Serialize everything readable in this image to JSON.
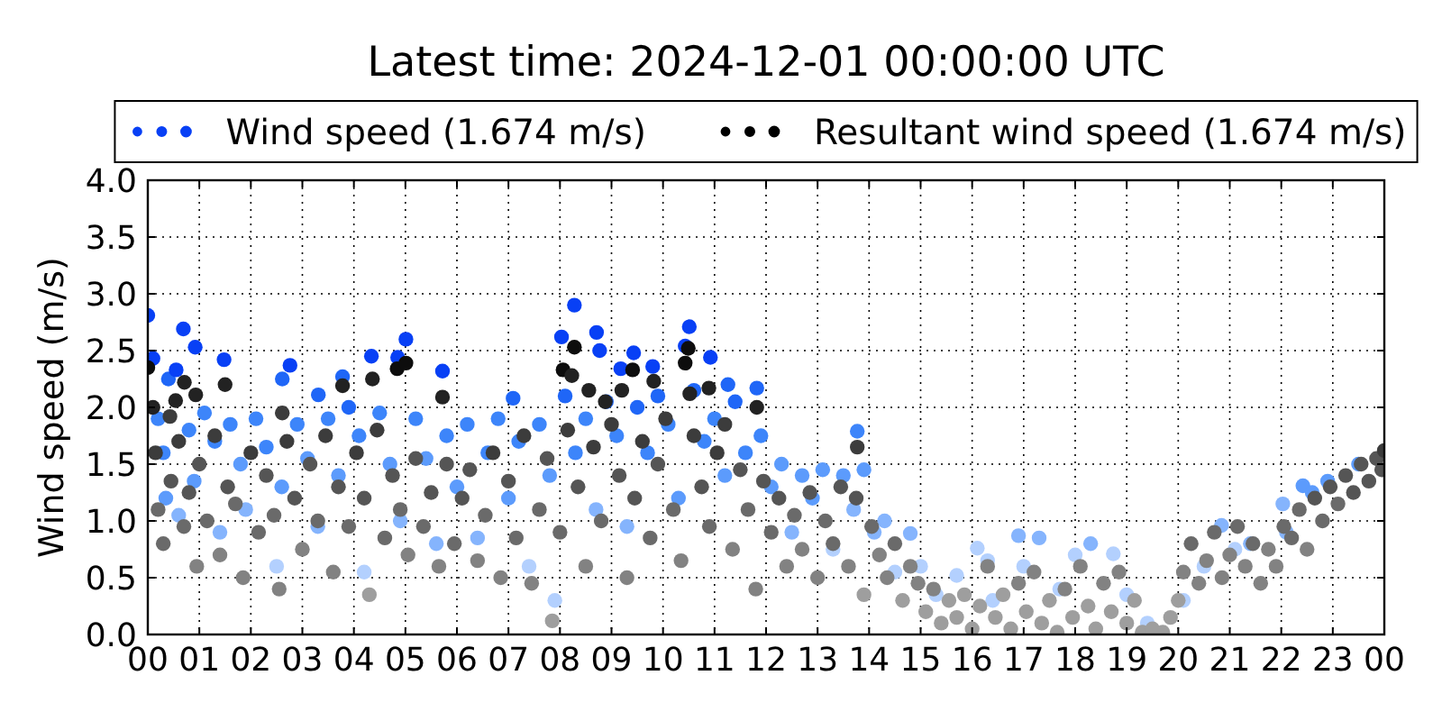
{
  "chart_data": {
    "type": "scatter",
    "title": "Latest time: 2024-12-01 00:00:00 UTC",
    "ylabel": "Wind speed (m/s)",
    "xlim": [
      0,
      24
    ],
    "xticks": [
      {
        "value": 0,
        "label": "00"
      },
      {
        "value": 1,
        "label": "01"
      },
      {
        "value": 2,
        "label": "02"
      },
      {
        "value": 3,
        "label": "03"
      },
      {
        "value": 4,
        "label": "04"
      },
      {
        "value": 5,
        "label": "05"
      },
      {
        "value": 6,
        "label": "06"
      },
      {
        "value": 7,
        "label": "07"
      },
      {
        "value": 8,
        "label": "08"
      },
      {
        "value": 9,
        "label": "09"
      },
      {
        "value": 10,
        "label": "10"
      },
      {
        "value": 11,
        "label": "11"
      },
      {
        "value": 12,
        "label": "12"
      },
      {
        "value": 13,
        "label": "13"
      },
      {
        "value": 14,
        "label": "14"
      },
      {
        "value": 15,
        "label": "15"
      },
      {
        "value": 16,
        "label": "16"
      },
      {
        "value": 17,
        "label": "17"
      },
      {
        "value": 18,
        "label": "18"
      },
      {
        "value": 19,
        "label": "19"
      },
      {
        "value": 20,
        "label": "20"
      },
      {
        "value": 21,
        "label": "21"
      },
      {
        "value": 22,
        "label": "22"
      },
      {
        "value": 23,
        "label": "23"
      },
      {
        "value": 24,
        "label": "00"
      }
    ],
    "ylim": [
      0,
      4
    ],
    "yticks": [
      {
        "value": 0,
        "label": "0.0"
      },
      0.5,
      {
        "value": 1,
        "label": "1.0"
      },
      1.5,
      {
        "value": 2,
        "label": "2.0"
      },
      2.5,
      {
        "value": 3,
        "label": "3.0"
      },
      3.5,
      {
        "value": 4,
        "label": "4.0"
      }
    ],
    "grid": true,
    "legend": "top",
    "marker": "circle",
    "series": [
      {
        "name": "Wind speed (1.674 m/s)",
        "color": "#0840f5",
        "x": [
          0,
          0.1,
          0.2,
          0.3,
          0.35,
          0.4,
          0.55,
          0.6,
          0.69,
          0.8,
          0.9,
          0.92,
          1.1,
          1.3,
          1.4,
          1.48,
          1.6,
          1.8,
          1.9,
          2.1,
          2.3,
          2.5,
          2.6,
          2.61,
          2.76,
          2.9,
          3.1,
          3.3,
          3.31,
          3.5,
          3.7,
          3.78,
          3.9,
          4.1,
          4.2,
          4.34,
          4.5,
          4.7,
          4.85,
          4.9,
          5.01,
          5.2,
          5.4,
          5.6,
          5.72,
          5.8,
          6.0,
          6.2,
          6.4,
          6.6,
          6.8,
          7.0,
          7.09,
          7.2,
          7.4,
          7.6,
          7.8,
          7.9,
          8.03,
          8.1,
          8.28,
          8.3,
          8.5,
          8.7,
          8.71,
          8.77,
          8.9,
          9.1,
          9.18,
          9.3,
          9.43,
          9.5,
          9.7,
          9.8,
          9.9,
          10.1,
          10.3,
          10.43,
          10.51,
          10.6,
          10.8,
          10.92,
          11.0,
          11.2,
          11.26,
          11.4,
          11.6,
          11.82,
          11.9,
          12.1,
          12.3,
          12.5,
          12.7,
          12.9,
          13.1,
          13.3,
          13.5,
          13.7,
          13.77,
          13.9,
          14.1,
          14.3,
          14.5,
          14.8,
          15.0,
          15.3,
          15.7,
          16.1,
          16.3,
          16.4,
          16.9,
          17.0,
          17.3,
          17.7,
          18.0,
          18.3,
          18.74,
          19.0,
          19.4,
          20.1,
          20.5,
          20.84,
          21.1,
          21.4,
          22.03,
          22.1,
          22.42,
          22.6,
          22.9,
          23.5
        ],
        "values": [
          2.81,
          2.43,
          1.9,
          1.6,
          1.2,
          2.25,
          2.33,
          1.05,
          2.69,
          1.8,
          1.35,
          2.53,
          1.95,
          1.7,
          0.9,
          2.42,
          1.85,
          1.5,
          1.1,
          1.9,
          1.65,
          0.6,
          1.3,
          2.25,
          2.37,
          1.85,
          1.55,
          0.95,
          2.11,
          1.9,
          1.4,
          2.27,
          2.0,
          1.75,
          0.55,
          2.45,
          1.95,
          1.5,
          2.44,
          1.0,
          2.6,
          1.9,
          1.55,
          0.8,
          2.32,
          1.75,
          1.3,
          1.85,
          0.85,
          1.6,
          1.9,
          1.2,
          2.08,
          1.7,
          0.6,
          1.85,
          1.4,
          0.3,
          2.62,
          2.1,
          2.9,
          1.6,
          1.9,
          1.1,
          2.66,
          2.5,
          2.05,
          1.75,
          2.34,
          0.95,
          2.48,
          2.0,
          1.6,
          2.36,
          2.1,
          1.85,
          1.2,
          2.54,
          2.71,
          2.15,
          1.7,
          2.44,
          1.9,
          1.4,
          2.2,
          2.05,
          1.6,
          2.17,
          1.75,
          1.3,
          1.5,
          0.9,
          1.4,
          1.2,
          1.45,
          0.75,
          1.4,
          1.1,
          1.79,
          1.45,
          0.9,
          1.0,
          0.55,
          0.89,
          0.6,
          0.35,
          0.52,
          0.76,
          0.65,
          0.3,
          0.87,
          0.6,
          0.85,
          0.4,
          0.7,
          0.8,
          0.71,
          0.35,
          0.1,
          0.3,
          0.6,
          0.96,
          0.75,
          0.8,
          1.15,
          0.9,
          1.31,
          1.25,
          1.35,
          1.5
        ],
        "colors": [
          "#0840f5",
          "#0840f5",
          "#3d85fa",
          "#3d85fa",
          "#5c9bfc",
          "#1f66f7",
          "#0840f5",
          "#85b4fd",
          "#0840f5",
          "#3d85fa",
          "#5c9bfc",
          "#0840f5",
          "#3d85fa",
          "#3d85fa",
          "#85b4fd",
          "#0840f5",
          "#3d85fa",
          "#5c9bfc",
          "#85b4fd",
          "#3d85fa",
          "#3d85fa",
          "#b3d0fe",
          "#5c9bfc",
          "#1f66f7",
          "#0840f5",
          "#3d85fa",
          "#5c9bfc",
          "#85b4fd",
          "#1f66f7",
          "#3d85fa",
          "#5c9bfc",
          "#1f66f7",
          "#1f66f7",
          "#3d85fa",
          "#b3d0fe",
          "#0840f5",
          "#3d85fa",
          "#5c9bfc",
          "#0840f5",
          "#85b4fd",
          "#0840f5",
          "#3d85fa",
          "#5c9bfc",
          "#85b4fd",
          "#0840f5",
          "#3d85fa",
          "#5c9bfc",
          "#3d85fa",
          "#85b4fd",
          "#3d85fa",
          "#3d85fa",
          "#5c9bfc",
          "#1f66f7",
          "#3d85fa",
          "#b3d0fe",
          "#3d85fa",
          "#5c9bfc",
          "#b3d0fe",
          "#0840f5",
          "#1f66f7",
          "#0840f5",
          "#3d85fa",
          "#3d85fa",
          "#85b4fd",
          "#0840f5",
          "#0840f5",
          "#1f66f7",
          "#3d85fa",
          "#0840f5",
          "#85b4fd",
          "#0840f5",
          "#1f66f7",
          "#3d85fa",
          "#0840f5",
          "#1f66f7",
          "#3d85fa",
          "#5c9bfc",
          "#0840f5",
          "#0840f5",
          "#1f66f7",
          "#3d85fa",
          "#0840f5",
          "#3d85fa",
          "#5c9bfc",
          "#1f66f7",
          "#1f66f7",
          "#3d85fa",
          "#1f66f7",
          "#3d85fa",
          "#5c9bfc",
          "#5c9bfc",
          "#85b4fd",
          "#5c9bfc",
          "#5c9bfc",
          "#5c9bfc",
          "#b3d0fe",
          "#5c9bfc",
          "#85b4fd",
          "#3d85fa",
          "#5c9bfc",
          "#85b4fd",
          "#85b4fd",
          "#b3d0fe",
          "#85b4fd",
          "#b3d0fe",
          "#b3d0fe",
          "#b3d0fe",
          "#b3d0fe",
          "#b3d0fe",
          "#b3d0fe",
          "#85b4fd",
          "#b3d0fe",
          "#85b4fd",
          "#b3d0fe",
          "#b3d0fe",
          "#85b4fd",
          "#b3d0fe",
          "#b3d0fe",
          "#b3d0fe",
          "#b3d0fe",
          "#b3d0fe",
          "#85b4fd",
          "#b3d0fe",
          "#85b4fd",
          "#85b4fd",
          "#85b4fd",
          "#5c9bfc",
          "#5c9bfc",
          "#5c9bfc",
          "#5c9bfc"
        ]
      },
      {
        "name": "Resultant wind speed (1.674 m/s)",
        "color": "#000000",
        "x": [
          0,
          0.1,
          0.15,
          0.2,
          0.3,
          0.43,
          0.45,
          0.54,
          0.6,
          0.7,
          0.71,
          0.8,
          0.93,
          0.95,
          1.0,
          1.15,
          1.3,
          1.4,
          1.5,
          1.55,
          1.7,
          1.85,
          2.0,
          2.15,
          2.3,
          2.45,
          2.55,
          2.61,
          2.7,
          2.85,
          3.0,
          3.15,
          3.3,
          3.45,
          3.6,
          3.7,
          3.78,
          3.9,
          4.05,
          4.2,
          4.3,
          4.36,
          4.45,
          4.6,
          4.75,
          4.84,
          4.9,
          5.01,
          5.05,
          5.2,
          5.35,
          5.5,
          5.65,
          5.72,
          5.8,
          5.95,
          6.1,
          6.25,
          6.4,
          6.55,
          6.7,
          6.85,
          7.0,
          7.15,
          7.3,
          7.45,
          7.6,
          7.75,
          7.85,
          8.0,
          8.06,
          8.15,
          8.23,
          8.28,
          8.35,
          8.5,
          8.56,
          8.65,
          8.8,
          8.88,
          9.0,
          9.15,
          9.2,
          9.3,
          9.41,
          9.45,
          9.6,
          9.75,
          9.82,
          9.9,
          10.05,
          10.2,
          10.35,
          10.43,
          10.49,
          10.52,
          10.6,
          10.75,
          10.89,
          10.9,
          11.05,
          11.2,
          11.35,
          11.5,
          11.65,
          11.8,
          11.82,
          11.95,
          12.1,
          12.25,
          12.4,
          12.55,
          12.7,
          12.85,
          13.0,
          13.15,
          13.3,
          13.45,
          13.6,
          13.75,
          13.77,
          13.9,
          14.05,
          14.2,
          14.35,
          14.5,
          14.65,
          14.8,
          14.95,
          15.1,
          15.25,
          15.4,
          15.55,
          15.7,
          15.85,
          16.0,
          16.15,
          16.3,
          16.45,
          16.6,
          16.75,
          16.9,
          17.05,
          17.2,
          17.35,
          17.5,
          17.65,
          17.8,
          17.95,
          18.1,
          18.25,
          18.4,
          18.55,
          18.7,
          18.85,
          19.0,
          19.15,
          19.3,
          19.5,
          19.7,
          19.85,
          20.0,
          20.1,
          20.25,
          20.4,
          20.55,
          20.7,
          20.85,
          21.0,
          21.15,
          21.3,
          21.45,
          21.6,
          21.75,
          21.9,
          22.05,
          22.2,
          22.35,
          22.5,
          22.65,
          22.8,
          22.95,
          23.1,
          23.25,
          23.4,
          23.55,
          23.7,
          23.85,
          23.95,
          24.0
        ],
        "values": [
          2.35,
          2.0,
          1.6,
          1.1,
          0.8,
          1.92,
          1.35,
          2.06,
          1.7,
          0.95,
          2.22,
          1.25,
          2.11,
          0.6,
          1.5,
          1.0,
          1.75,
          0.7,
          2.2,
          1.3,
          1.15,
          0.5,
          1.6,
          0.9,
          1.4,
          1.05,
          0.4,
          1.95,
          1.7,
          1.2,
          0.75,
          1.5,
          1.0,
          1.75,
          0.55,
          1.3,
          2.19,
          0.95,
          1.6,
          1.2,
          0.35,
          2.25,
          1.8,
          0.85,
          1.4,
          2.34,
          1.1,
          2.39,
          0.7,
          1.55,
          0.95,
          1.25,
          0.6,
          2.09,
          1.5,
          0.8,
          1.2,
          1.45,
          0.65,
          1.05,
          1.6,
          0.5,
          1.35,
          0.85,
          1.75,
          0.45,
          1.1,
          1.55,
          0.12,
          0.9,
          2.33,
          1.8,
          2.28,
          2.53,
          1.3,
          0.6,
          2.15,
          1.65,
          1.0,
          2.05,
          1.85,
          1.4,
          2.15,
          0.5,
          2.33,
          1.2,
          1.7,
          0.85,
          2.23,
          1.5,
          1.9,
          1.1,
          0.65,
          2.39,
          2.52,
          2.12,
          1.75,
          1.3,
          2.17,
          0.95,
          1.6,
          1.85,
          0.75,
          1.45,
          1.1,
          0.4,
          2.0,
          1.35,
          0.9,
          1.2,
          0.6,
          1.05,
          0.75,
          1.25,
          0.5,
          1.0,
          0.8,
          1.3,
          0.6,
          1.2,
          1.65,
          0.35,
          0.95,
          0.7,
          0.5,
          0.8,
          0.3,
          0.6,
          0.45,
          0.2,
          0.4,
          0.1,
          0.3,
          0.15,
          0.35,
          0.05,
          0.25,
          0.6,
          0.15,
          0.35,
          0.05,
          0.45,
          0.2,
          0.55,
          0.1,
          0.3,
          0.02,
          0.4,
          0.15,
          0.6,
          0.25,
          0.05,
          0.45,
          0.2,
          0.55,
          0.1,
          0.3,
          0.02,
          0.05,
          0.02,
          0.15,
          0.3,
          0.55,
          0.8,
          0.45,
          0.65,
          0.9,
          0.5,
          0.7,
          0.95,
          0.6,
          0.8,
          0.45,
          0.75,
          0.6,
          0.95,
          0.85,
          1.1,
          0.75,
          1.2,
          1.0,
          1.3,
          1.15,
          1.4,
          1.25,
          1.5,
          1.35,
          1.55,
          1.45,
          1.62
        ],
        "colors": [
          "#0d0d0d",
          "#222222",
          "#3c3c3c",
          "#6a6a6a",
          "#6a6a6a",
          "#3c3c3c",
          "#555555",
          "#222222",
          "#3c3c3c",
          "#6a6a6a",
          "#222222",
          "#555555",
          "#222222",
          "#828282",
          "#555555",
          "#6a6a6a",
          "#3c3c3c",
          "#828282",
          "#222222",
          "#555555",
          "#6a6a6a",
          "#828282",
          "#3c3c3c",
          "#6a6a6a",
          "#555555",
          "#6a6a6a",
          "#828282",
          "#3c3c3c",
          "#3c3c3c",
          "#555555",
          "#828282",
          "#555555",
          "#6a6a6a",
          "#3c3c3c",
          "#828282",
          "#555555",
          "#222222",
          "#6a6a6a",
          "#3c3c3c",
          "#555555",
          "#9e9e9e",
          "#222222",
          "#3c3c3c",
          "#6a6a6a",
          "#555555",
          "#0d0d0d",
          "#6a6a6a",
          "#0d0d0d",
          "#828282",
          "#555555",
          "#6a6a6a",
          "#555555",
          "#828282",
          "#222222",
          "#555555",
          "#6a6a6a",
          "#555555",
          "#555555",
          "#828282",
          "#6a6a6a",
          "#3c3c3c",
          "#828282",
          "#555555",
          "#6a6a6a",
          "#3c3c3c",
          "#828282",
          "#6a6a6a",
          "#555555",
          "#9e9e9e",
          "#6a6a6a",
          "#0d0d0d",
          "#3c3c3c",
          "#222222",
          "#0d0d0d",
          "#555555",
          "#828282",
          "#222222",
          "#3c3c3c",
          "#6a6a6a",
          "#222222",
          "#3c3c3c",
          "#555555",
          "#222222",
          "#828282",
          "#0d0d0d",
          "#555555",
          "#3c3c3c",
          "#6a6a6a",
          "#222222",
          "#555555",
          "#3c3c3c",
          "#6a6a6a",
          "#828282",
          "#0d0d0d",
          "#0d0d0d",
          "#222222",
          "#3c3c3c",
          "#555555",
          "#222222",
          "#6a6a6a",
          "#3c3c3c",
          "#3c3c3c",
          "#828282",
          "#555555",
          "#6a6a6a",
          "#828282",
          "#222222",
          "#555555",
          "#6a6a6a",
          "#555555",
          "#828282",
          "#6a6a6a",
          "#828282",
          "#555555",
          "#828282",
          "#6a6a6a",
          "#6a6a6a",
          "#555555",
          "#828282",
          "#555555",
          "#3c3c3c",
          "#9e9e9e",
          "#6a6a6a",
          "#828282",
          "#828282",
          "#6a6a6a",
          "#9e9e9e",
          "#828282",
          "#828282",
          "#9e9e9e",
          "#828282",
          "#9e9e9e",
          "#9e9e9e",
          "#9e9e9e",
          "#9e9e9e",
          "#9e9e9e",
          "#9e9e9e",
          "#828282",
          "#9e9e9e",
          "#9e9e9e",
          "#9e9e9e",
          "#828282",
          "#9e9e9e",
          "#828282",
          "#9e9e9e",
          "#9e9e9e",
          "#9e9e9e",
          "#828282",
          "#9e9e9e",
          "#828282",
          "#9e9e9e",
          "#9e9e9e",
          "#828282",
          "#9e9e9e",
          "#828282",
          "#9e9e9e",
          "#9e9e9e",
          "#9e9e9e",
          "#9e9e9e",
          "#9e9e9e",
          "#9e9e9e",
          "#9e9e9e",
          "#828282",
          "#6a6a6a",
          "#828282",
          "#828282",
          "#6a6a6a",
          "#828282",
          "#828282",
          "#6a6a6a",
          "#828282",
          "#6a6a6a",
          "#828282",
          "#828282",
          "#828282",
          "#6a6a6a",
          "#6a6a6a",
          "#6a6a6a",
          "#828282",
          "#555555",
          "#6a6a6a",
          "#555555",
          "#6a6a6a",
          "#555555",
          "#555555",
          "#555555",
          "#555555",
          "#555555",
          "#555555",
          "#3c3c3c"
        ]
      }
    ]
  }
}
